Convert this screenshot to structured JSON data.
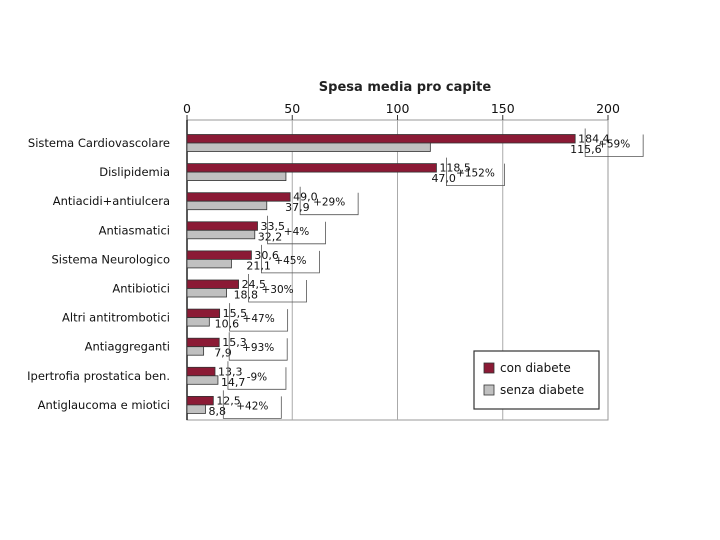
{
  "chart_data": {
    "type": "bar",
    "orientation": "horizontal",
    "title": "Spesa media pro capite",
    "xlim": [
      0,
      200
    ],
    "xticks": [
      0,
      50,
      100,
      150,
      200
    ],
    "grid": true,
    "legend_position": "bottom-right",
    "categories": [
      "Sistema Cardiovascolare",
      "Dislipidemia",
      "Antiacidi+antiulcera",
      "Antiasmatici",
      "Sistema Neurologico",
      "Antibiotici",
      "Altri antitrombotici",
      "Antiaggreganti",
      "Ipertrofia prostatica ben.",
      "Antiglaucoma e miotici"
    ],
    "series": [
      {
        "name": "con diabete",
        "color": "#8b1a35",
        "values": [
          184.4,
          118.5,
          49.0,
          33.5,
          30.6,
          24.5,
          15.5,
          15.3,
          13.3,
          12.5
        ],
        "labels": [
          "184,4",
          "118,5",
          "49,0",
          "33,5",
          "30,6",
          "24,5",
          "15,5",
          "15,3",
          "13,3",
          "12,5"
        ]
      },
      {
        "name": "senza diabete",
        "color": "#c0c0c0",
        "values": [
          115.6,
          47.0,
          37.9,
          32.2,
          21.1,
          18.8,
          10.6,
          7.9,
          14.7,
          8.8
        ],
        "labels": [
          "115,6",
          "47,0",
          "37,9",
          "32,2",
          "21,1",
          "18,8",
          "10,6",
          "7,9",
          "14,7",
          "8,8"
        ]
      }
    ],
    "annotations": [
      "+59%",
      "+152%",
      "+29%",
      "+4%",
      "+45%",
      "+30%",
      "+47%",
      "+93%",
      "-9%",
      "+42%"
    ]
  }
}
